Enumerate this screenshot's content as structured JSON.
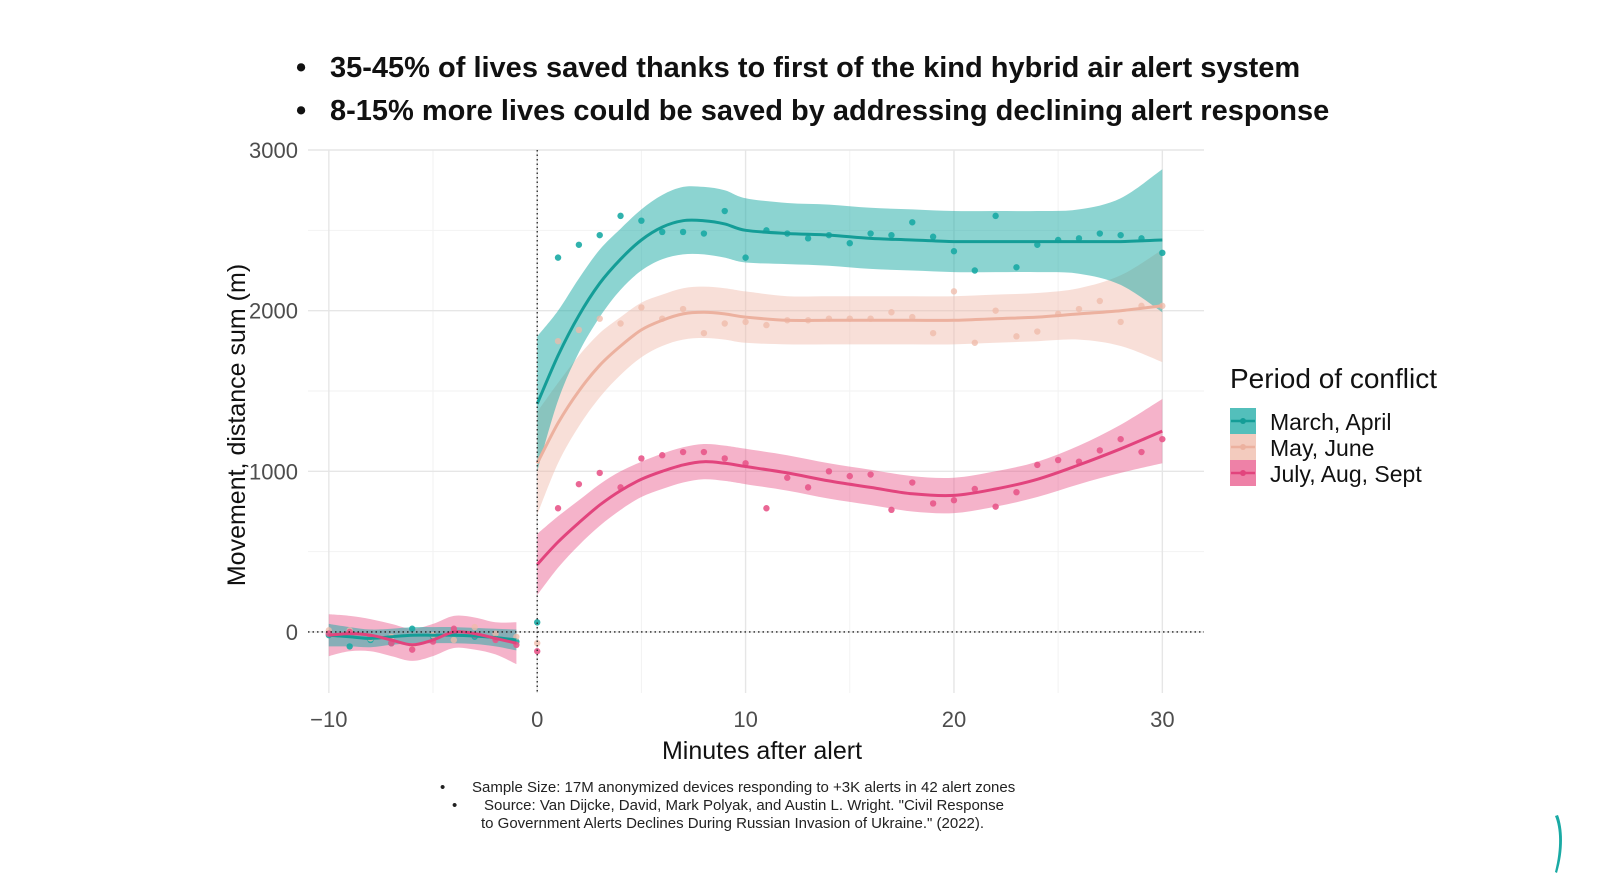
{
  "headlines": [
    "35-45% of lives saved thanks to first of the kind hybrid air alert system",
    "8-15% more lives could be saved by addressing declining alert response"
  ],
  "bullet_glyph": "•",
  "footnotes": {
    "sample_size": "Sample Size: 17M anonymized devices responding to +3K alerts in 42 alert zones",
    "source_line1": "Source:  Van Dijcke, David, Mark Polyak, and Austin L. Wright. \"Civil Response",
    "source_line2": "to Government Alerts Declines During Russian Invasion of Ukraine.\" (2022)."
  },
  "colors": {
    "march_april": "#1aaaa4",
    "may_june": "#efb9a8",
    "july_aug_sept": "#e8578a",
    "brand": "#1aaaa4"
  },
  "chart_data": {
    "type": "scatter",
    "xlabel": "Minutes after alert",
    "ylabel": "Movement, distance sum (m)",
    "xlim": [
      -11,
      32
    ],
    "ylim": [
      -380,
      3000
    ],
    "xticks": [
      -10,
      0,
      10,
      20,
      30
    ],
    "xtick_labels": [
      "−10",
      "0",
      "10",
      "20",
      "30"
    ],
    "yticks": [
      0,
      1000,
      2000,
      3000
    ],
    "ytick_labels": [
      "0",
      "1000",
      "2000",
      "3000"
    ],
    "grid": true,
    "reference_lines": {
      "x": 0,
      "y": 0,
      "style": "dotted"
    },
    "legend": {
      "title": "Period of conflict",
      "placement": "right",
      "entries": [
        "March, April",
        "May, June",
        "July, Aug, Sept"
      ]
    },
    "series": [
      {
        "name": "March, April",
        "pre_points": [
          {
            "x": -10,
            "y": -20
          },
          {
            "x": -9,
            "y": -90
          },
          {
            "x": -8,
            "y": -50
          },
          {
            "x": -7,
            "y": -70
          },
          {
            "x": -6,
            "y": 20
          },
          {
            "x": -5,
            "y": -30
          },
          {
            "x": -4,
            "y": -10
          },
          {
            "x": -3,
            "y": -30
          },
          {
            "x": -2,
            "y": -40
          },
          {
            "x": -1,
            "y": -60
          }
        ],
        "post_points": [
          {
            "x": 0,
            "y": 60
          },
          {
            "x": 1,
            "y": 2330
          },
          {
            "x": 2,
            "y": 2410
          },
          {
            "x": 3,
            "y": 2470
          },
          {
            "x": 4,
            "y": 2590
          },
          {
            "x": 5,
            "y": 2560
          },
          {
            "x": 6,
            "y": 2490
          },
          {
            "x": 7,
            "y": 2490
          },
          {
            "x": 8,
            "y": 2480
          },
          {
            "x": 9,
            "y": 2620
          },
          {
            "x": 10,
            "y": 2330
          },
          {
            "x": 11,
            "y": 2500
          },
          {
            "x": 12,
            "y": 2480
          },
          {
            "x": 13,
            "y": 2450
          },
          {
            "x": 14,
            "y": 2470
          },
          {
            "x": 15,
            "y": 2420
          },
          {
            "x": 16,
            "y": 2480
          },
          {
            "x": 17,
            "y": 2470
          },
          {
            "x": 18,
            "y": 2550
          },
          {
            "x": 19,
            "y": 2460
          },
          {
            "x": 20,
            "y": 2370
          },
          {
            "x": 21,
            "y": 2250
          },
          {
            "x": 22,
            "y": 2590
          },
          {
            "x": 23,
            "y": 2270
          },
          {
            "x": 24,
            "y": 2410
          },
          {
            "x": 25,
            "y": 2440
          },
          {
            "x": 26,
            "y": 2450
          },
          {
            "x": 27,
            "y": 2480
          },
          {
            "x": 28,
            "y": 2470
          },
          {
            "x": 29,
            "y": 2450
          },
          {
            "x": 30,
            "y": 2360
          }
        ],
        "pre_smooth": [
          {
            "x": -10,
            "y": -20,
            "lo": -90,
            "hi": 50
          },
          {
            "x": -9,
            "y": -30,
            "lo": -90,
            "hi": 30
          },
          {
            "x": -8,
            "y": -40,
            "lo": -95,
            "hi": 15
          },
          {
            "x": -7,
            "y": -30,
            "lo": -80,
            "hi": 20
          },
          {
            "x": -6,
            "y": -20,
            "lo": -70,
            "hi": 30
          },
          {
            "x": -5,
            "y": -20,
            "lo": -70,
            "hi": 30
          },
          {
            "x": -4,
            "y": -20,
            "lo": -70,
            "hi": 30
          },
          {
            "x": -3,
            "y": -25,
            "lo": -75,
            "hi": 25
          },
          {
            "x": -2,
            "y": -35,
            "lo": -90,
            "hi": 20
          },
          {
            "x": -1,
            "y": -50,
            "lo": -115,
            "hi": 15
          }
        ],
        "post_smooth": [
          {
            "x": 0,
            "y": 1420,
            "lo": 1000,
            "hi": 1840
          },
          {
            "x": 1,
            "y": 1720,
            "lo": 1440,
            "hi": 2000
          },
          {
            "x": 2,
            "y": 1970,
            "lo": 1740,
            "hi": 2200
          },
          {
            "x": 3,
            "y": 2170,
            "lo": 1960,
            "hi": 2380
          },
          {
            "x": 4,
            "y": 2320,
            "lo": 2130,
            "hi": 2510
          },
          {
            "x": 5,
            "y": 2440,
            "lo": 2250,
            "hi": 2630
          },
          {
            "x": 6,
            "y": 2520,
            "lo": 2320,
            "hi": 2720
          },
          {
            "x": 7,
            "y": 2560,
            "lo": 2350,
            "hi": 2770
          },
          {
            "x": 8,
            "y": 2560,
            "lo": 2350,
            "hi": 2770
          },
          {
            "x": 9,
            "y": 2540,
            "lo": 2330,
            "hi": 2750
          },
          {
            "x": 10,
            "y": 2500,
            "lo": 2300,
            "hi": 2700
          },
          {
            "x": 12,
            "y": 2480,
            "lo": 2290,
            "hi": 2670
          },
          {
            "x": 14,
            "y": 2470,
            "lo": 2280,
            "hi": 2660
          },
          {
            "x": 16,
            "y": 2450,
            "lo": 2260,
            "hi": 2640
          },
          {
            "x": 18,
            "y": 2440,
            "lo": 2250,
            "hi": 2630
          },
          {
            "x": 20,
            "y": 2430,
            "lo": 2240,
            "hi": 2620
          },
          {
            "x": 22,
            "y": 2430,
            "lo": 2240,
            "hi": 2620
          },
          {
            "x": 24,
            "y": 2430,
            "lo": 2240,
            "hi": 2620
          },
          {
            "x": 26,
            "y": 2430,
            "lo": 2230,
            "hi": 2630
          },
          {
            "x": 28,
            "y": 2430,
            "lo": 2160,
            "hi": 2700
          },
          {
            "x": 30,
            "y": 2440,
            "lo": 1990,
            "hi": 2880
          }
        ]
      },
      {
        "name": "May, June",
        "pre_points": [
          {
            "x": -10,
            "y": 10
          },
          {
            "x": -9,
            "y": 10
          },
          {
            "x": -8,
            "y": -40
          },
          {
            "x": -7,
            "y": -30
          },
          {
            "x": -6,
            "y": -90
          },
          {
            "x": -5,
            "y": -20
          },
          {
            "x": -4,
            "y": -50
          },
          {
            "x": -3,
            "y": 30
          },
          {
            "x": -2,
            "y": -10
          },
          {
            "x": -1,
            "y": -30
          }
        ],
        "post_points": [
          {
            "x": 0,
            "y": -70
          },
          {
            "x": 1,
            "y": 1810
          },
          {
            "x": 2,
            "y": 1880
          },
          {
            "x": 3,
            "y": 1950
          },
          {
            "x": 4,
            "y": 1920
          },
          {
            "x": 5,
            "y": 2020
          },
          {
            "x": 6,
            "y": 1950
          },
          {
            "x": 7,
            "y": 2010
          },
          {
            "x": 8,
            "y": 1860
          },
          {
            "x": 9,
            "y": 1920
          },
          {
            "x": 10,
            "y": 1930
          },
          {
            "x": 11,
            "y": 1910
          },
          {
            "x": 12,
            "y": 1940
          },
          {
            "x": 13,
            "y": 1940
          },
          {
            "x": 14,
            "y": 1950
          },
          {
            "x": 15,
            "y": 1950
          },
          {
            "x": 16,
            "y": 1950
          },
          {
            "x": 17,
            "y": 1990
          },
          {
            "x": 18,
            "y": 1960
          },
          {
            "x": 19,
            "y": 1860
          },
          {
            "x": 20,
            "y": 2120
          },
          {
            "x": 21,
            "y": 1800
          },
          {
            "x": 22,
            "y": 2000
          },
          {
            "x": 23,
            "y": 1840
          },
          {
            "x": 24,
            "y": 1870
          },
          {
            "x": 25,
            "y": 1980
          },
          {
            "x": 26,
            "y": 2010
          },
          {
            "x": 27,
            "y": 2060
          },
          {
            "x": 28,
            "y": 1930
          },
          {
            "x": 29,
            "y": 2030
          },
          {
            "x": 30,
            "y": 2030
          }
        ],
        "post_smooth": [
          {
            "x": 0,
            "y": 1050,
            "lo": 730,
            "hi": 1370
          },
          {
            "x": 1,
            "y": 1300,
            "lo": 1050,
            "hi": 1550
          },
          {
            "x": 2,
            "y": 1500,
            "lo": 1280,
            "hi": 1720
          },
          {
            "x": 3,
            "y": 1660,
            "lo": 1460,
            "hi": 1860
          },
          {
            "x": 4,
            "y": 1780,
            "lo": 1600,
            "hi": 1960
          },
          {
            "x": 5,
            "y": 1880,
            "lo": 1710,
            "hi": 2050
          },
          {
            "x": 6,
            "y": 1940,
            "lo": 1780,
            "hi": 2100
          },
          {
            "x": 7,
            "y": 1980,
            "lo": 1820,
            "hi": 2140
          },
          {
            "x": 8,
            "y": 1990,
            "lo": 1830,
            "hi": 2150
          },
          {
            "x": 9,
            "y": 1980,
            "lo": 1820,
            "hi": 2140
          },
          {
            "x": 10,
            "y": 1960,
            "lo": 1800,
            "hi": 2120
          },
          {
            "x": 12,
            "y": 1940,
            "lo": 1790,
            "hi": 2090
          },
          {
            "x": 14,
            "y": 1940,
            "lo": 1790,
            "hi": 2090
          },
          {
            "x": 16,
            "y": 1940,
            "lo": 1790,
            "hi": 2090
          },
          {
            "x": 18,
            "y": 1940,
            "lo": 1790,
            "hi": 2090
          },
          {
            "x": 20,
            "y": 1940,
            "lo": 1790,
            "hi": 2090
          },
          {
            "x": 22,
            "y": 1950,
            "lo": 1800,
            "hi": 2100
          },
          {
            "x": 24,
            "y": 1960,
            "lo": 1810,
            "hi": 2110
          },
          {
            "x": 26,
            "y": 1980,
            "lo": 1820,
            "hi": 2140
          },
          {
            "x": 28,
            "y": 2000,
            "lo": 1780,
            "hi": 2220
          },
          {
            "x": 30,
            "y": 2030,
            "lo": 1680,
            "hi": 2380
          }
        ]
      },
      {
        "name": "July, Aug, Sept",
        "pre_points": [
          {
            "x": -10,
            "y": -10
          },
          {
            "x": -9,
            "y": 0
          },
          {
            "x": -8,
            "y": -30
          },
          {
            "x": -7,
            "y": -70
          },
          {
            "x": -6,
            "y": -110
          },
          {
            "x": -5,
            "y": -60
          },
          {
            "x": -4,
            "y": 20
          },
          {
            "x": -3,
            "y": -20
          },
          {
            "x": -2,
            "y": -50
          },
          {
            "x": -1,
            "y": -80
          }
        ],
        "post_points": [
          {
            "x": 0,
            "y": -120
          },
          {
            "x": 1,
            "y": 770
          },
          {
            "x": 2,
            "y": 920
          },
          {
            "x": 3,
            "y": 990
          },
          {
            "x": 4,
            "y": 900
          },
          {
            "x": 5,
            "y": 1080
          },
          {
            "x": 6,
            "y": 1100
          },
          {
            "x": 7,
            "y": 1120
          },
          {
            "x": 8,
            "y": 1120
          },
          {
            "x": 9,
            "y": 1080
          },
          {
            "x": 10,
            "y": 1050
          },
          {
            "x": 11,
            "y": 770
          },
          {
            "x": 12,
            "y": 960
          },
          {
            "x": 13,
            "y": 900
          },
          {
            "x": 14,
            "y": 1000
          },
          {
            "x": 15,
            "y": 970
          },
          {
            "x": 16,
            "y": 980
          },
          {
            "x": 17,
            "y": 760
          },
          {
            "x": 18,
            "y": 930
          },
          {
            "x": 19,
            "y": 800
          },
          {
            "x": 20,
            "y": 820
          },
          {
            "x": 21,
            "y": 890
          },
          {
            "x": 22,
            "y": 780
          },
          {
            "x": 23,
            "y": 870
          },
          {
            "x": 24,
            "y": 1040
          },
          {
            "x": 25,
            "y": 1070
          },
          {
            "x": 26,
            "y": 1060
          },
          {
            "x": 27,
            "y": 1130
          },
          {
            "x": 28,
            "y": 1200
          },
          {
            "x": 29,
            "y": 1120
          },
          {
            "x": 30,
            "y": 1200
          }
        ],
        "pre_smooth": [
          {
            "x": -10,
            "y": -20,
            "lo": -150,
            "hi": 110
          },
          {
            "x": -9,
            "y": -10,
            "lo": -120,
            "hi": 100
          },
          {
            "x": -8,
            "y": -20,
            "lo": -120,
            "hi": 80
          },
          {
            "x": -7,
            "y": -50,
            "lo": -150,
            "hi": 50
          },
          {
            "x": -6,
            "y": -80,
            "lo": -180,
            "hi": 20
          },
          {
            "x": -5,
            "y": -50,
            "lo": -150,
            "hi": 50
          },
          {
            "x": -4,
            "y": 0,
            "lo": -100,
            "hi": 100
          },
          {
            "x": -3,
            "y": -10,
            "lo": -110,
            "hi": 90
          },
          {
            "x": -2,
            "y": -40,
            "lo": -140,
            "hi": 60
          },
          {
            "x": -1,
            "y": -70,
            "lo": -200,
            "hi": 60
          }
        ],
        "post_smooth": [
          {
            "x": 0,
            "y": 420,
            "lo": 230,
            "hi": 610
          },
          {
            "x": 1,
            "y": 560,
            "lo": 400,
            "hi": 720
          },
          {
            "x": 2,
            "y": 680,
            "lo": 540,
            "hi": 820
          },
          {
            "x": 3,
            "y": 790,
            "lo": 660,
            "hi": 920
          },
          {
            "x": 4,
            "y": 880,
            "lo": 760,
            "hi": 1000
          },
          {
            "x": 5,
            "y": 950,
            "lo": 840,
            "hi": 1060
          },
          {
            "x": 6,
            "y": 1000,
            "lo": 890,
            "hi": 1110
          },
          {
            "x": 7,
            "y": 1040,
            "lo": 930,
            "hi": 1150
          },
          {
            "x": 8,
            "y": 1060,
            "lo": 950,
            "hi": 1170
          },
          {
            "x": 9,
            "y": 1050,
            "lo": 940,
            "hi": 1160
          },
          {
            "x": 10,
            "y": 1030,
            "lo": 920,
            "hi": 1140
          },
          {
            "x": 12,
            "y": 990,
            "lo": 880,
            "hi": 1100
          },
          {
            "x": 14,
            "y": 940,
            "lo": 830,
            "hi": 1050
          },
          {
            "x": 16,
            "y": 900,
            "lo": 790,
            "hi": 1010
          },
          {
            "x": 18,
            "y": 860,
            "lo": 750,
            "hi": 970
          },
          {
            "x": 20,
            "y": 850,
            "lo": 740,
            "hi": 960
          },
          {
            "x": 22,
            "y": 890,
            "lo": 780,
            "hi": 1000
          },
          {
            "x": 24,
            "y": 950,
            "lo": 840,
            "hi": 1060
          },
          {
            "x": 26,
            "y": 1040,
            "lo": 920,
            "hi": 1160
          },
          {
            "x": 28,
            "y": 1140,
            "lo": 990,
            "hi": 1290
          },
          {
            "x": 30,
            "y": 1250,
            "lo": 1050,
            "hi": 1450
          }
        ]
      }
    ]
  }
}
